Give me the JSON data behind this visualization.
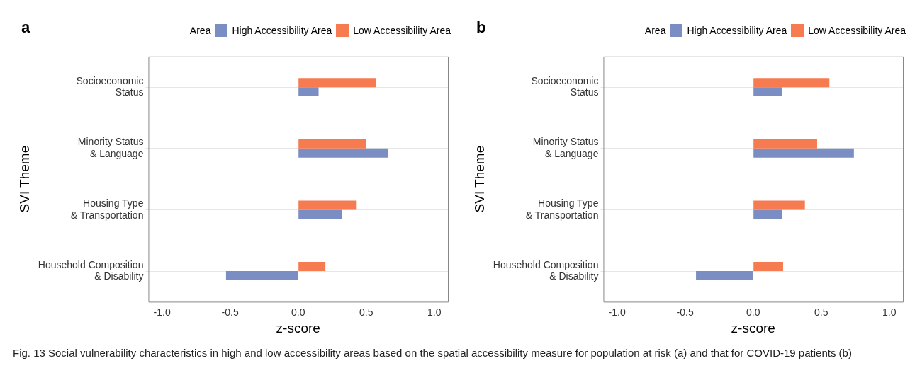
{
  "chart_data": [
    {
      "type": "bar",
      "title": "a",
      "orientation": "horizontal",
      "xlabel": "z-score",
      "ylabel": "SVI Theme",
      "legend_title": "Area",
      "legend": "top right",
      "grid": true,
      "categories": [
        "Socioeconomic Status",
        "Minority Status & Language",
        "Housing Type & Transportation",
        "Household Composition & Disability"
      ],
      "series": [
        {
          "name": "High Accessibility Area",
          "color": "#7b8ec4",
          "values": [
            0.15,
            0.66,
            0.32,
            -0.53
          ]
        },
        {
          "name": "Low Accessibility Area",
          "color": "#f77b50",
          "values": [
            0.57,
            0.5,
            0.43,
            0.2
          ]
        }
      ],
      "xlim": [
        -1.1,
        1.1
      ],
      "xticks": [
        {
          "value": -1,
          "label": "-1.0"
        },
        {
          "value": -0.75,
          "label": null
        },
        {
          "value": -0.5,
          "label": "-0.5"
        },
        {
          "value": -0.25,
          "label": null
        },
        {
          "value": 0,
          "label": "0.0"
        },
        {
          "value": 0.25,
          "label": null
        },
        {
          "value": 0.5,
          "label": "0.5"
        },
        {
          "value": 0.75,
          "label": null
        },
        {
          "value": 1,
          "label": "1.0"
        }
      ],
      "annotations": [
        "Fig. 13 Social vulnerability characteristics in high and low accessibility areas based on the spatial accessibility measure for population at risk (a) and that for COVID-19 patients (b)"
      ]
    },
    {
      "type": "bar",
      "title": "b",
      "orientation": "horizontal",
      "xlabel": "z-score",
      "ylabel": "SVI Theme",
      "legend_title": "Area",
      "legend": "top right",
      "grid": true,
      "categories": [
        "Socioeconomic Status",
        "Minority Status & Language",
        "Housing Type & Transportation",
        "Household Composition & Disability"
      ],
      "series": [
        {
          "name": "High Accessibility Area",
          "color": "#7b8ec4",
          "values": [
            0.21,
            0.74,
            0.21,
            -0.42
          ]
        },
        {
          "name": "Low Accessibility Area",
          "color": "#f77b50",
          "values": [
            0.56,
            0.47,
            0.38,
            0.22
          ]
        }
      ],
      "xlim": [
        -1.1,
        1.1
      ],
      "xticks": [
        {
          "value": -1,
          "label": "-1.0"
        },
        {
          "value": -0.75,
          "label": null
        },
        {
          "value": -0.5,
          "label": "-0.5"
        },
        {
          "value": -0.25,
          "label": null
        },
        {
          "value": 0,
          "label": "0.0"
        },
        {
          "value": 0.25,
          "label": null
        },
        {
          "value": 0.5,
          "label": "0.5"
        },
        {
          "value": 0.75,
          "label": null
        },
        {
          "value": 1,
          "label": "1.0"
        }
      ]
    }
  ]
}
